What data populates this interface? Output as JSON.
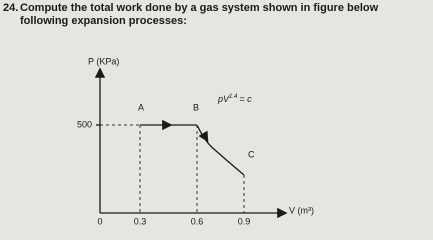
{
  "problem": {
    "number": "24.",
    "text": "Compute the total work done by a gas system shown in figure below following expansion processes:"
  },
  "figure": {
    "y_axis_label": "P (KPa)",
    "x_axis_label": "V (m³)",
    "points": [
      "A",
      "B",
      "C"
    ],
    "process_label": {
      "base": "pV",
      "exponent": "1.4",
      "rhs": "= c"
    },
    "pressure_tick": 500,
    "volume_ticks": [
      0,
      0.3,
      0.6,
      0.9
    ]
  }
}
